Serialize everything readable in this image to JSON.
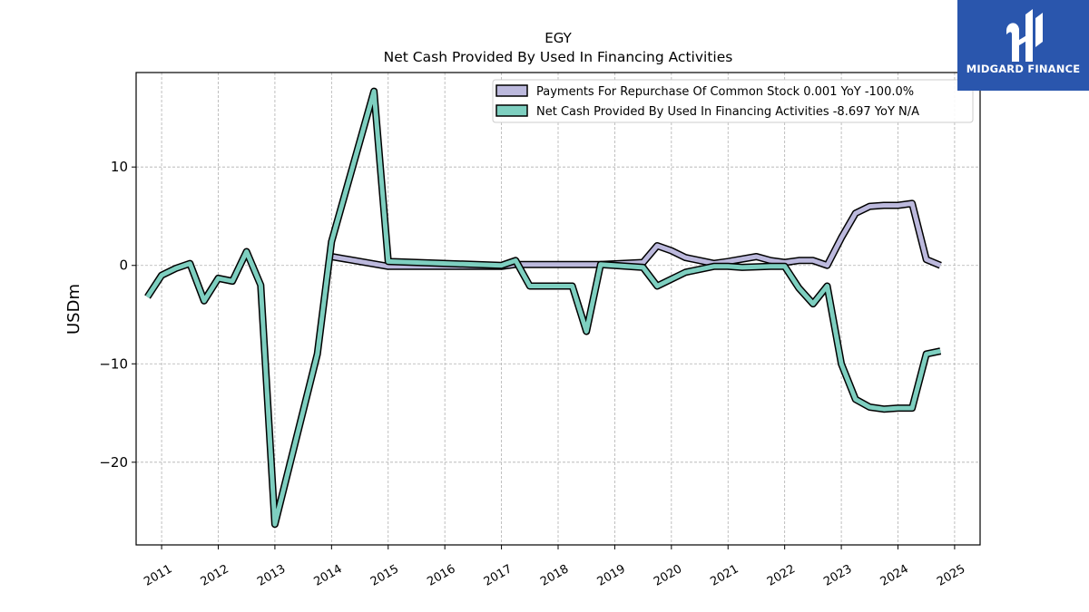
{
  "chart_data": {
    "type": "line",
    "title": "EGY",
    "subtitle": "Net Cash Provided By Used In Financing Activities",
    "ylabel": "USDm",
    "xlabel": "",
    "xlim": [
      2010.55,
      2025.45
    ],
    "ylim": [
      -28.4,
      19.6
    ],
    "yticks": [
      10,
      0,
      -10,
      -20
    ],
    "ytick_labels": [
      "10",
      "0",
      "−10",
      "−20"
    ],
    "xticks": [
      "2011",
      "2012",
      "2013",
      "2014",
      "2015",
      "2016",
      "2017",
      "2018",
      "2019",
      "2020",
      "2021",
      "2022",
      "2023",
      "2024",
      "2025"
    ],
    "grid": true,
    "legend_position": "top-right",
    "series": [
      {
        "name": "Payments For Repurchase Of Common Stock",
        "legend_label": "Payments For Repurchase Of Common Stock  0.001 YoY -100.0%",
        "color": "#bcb9dd",
        "x": [
          2014.0,
          2015.0,
          2017.0,
          2017.25,
          2018.0,
          2018.75,
          2019.5,
          2019.75,
          2020.0,
          2020.25,
          2020.75,
          2021.0,
          2021.5,
          2021.75,
          2022.0,
          2022.25,
          2022.5,
          2022.75,
          2023.0,
          2023.25,
          2023.5,
          2023.75,
          2024.0,
          2024.25,
          2024.5,
          2024.75
        ],
        "values": [
          0.9,
          -0.1,
          -0.1,
          0.1,
          0.1,
          0.1,
          0.3,
          2.0,
          1.5,
          0.8,
          0.2,
          0.4,
          0.9,
          0.5,
          0.3,
          0.5,
          0.5,
          0.0,
          2.8,
          5.3,
          6.0,
          6.1,
          6.1,
          6.3,
          0.6,
          0.0
        ]
      },
      {
        "name": "Net Cash Provided By Used In Financing Activities",
        "legend_label": "Net Cash Provided By Used In Financing Activities  -8.697 YoY N/A",
        "color": "#7ecfc0",
        "x": [
          2010.75,
          2011.0,
          2011.25,
          2011.5,
          2011.75,
          2012.0,
          2012.25,
          2012.5,
          2012.75,
          2013.0,
          2013.75,
          2014.0,
          2014.75,
          2015.0,
          2017.0,
          2017.25,
          2017.5,
          2018.0,
          2018.25,
          2018.5,
          2018.75,
          2019.5,
          2019.75,
          2020.25,
          2020.75,
          2021.0,
          2021.25,
          2021.75,
          2022.0,
          2022.25,
          2022.5,
          2022.75,
          2023.0,
          2023.25,
          2023.5,
          2023.75,
          2024.0,
          2024.25,
          2024.5,
          2024.75
        ],
        "values": [
          -3.2,
          -1.0,
          -0.3,
          0.2,
          -3.6,
          -1.3,
          -1.6,
          1.4,
          -2.0,
          -26.3,
          -9.0,
          2.4,
          17.7,
          0.4,
          0.0,
          0.5,
          -2.1,
          -2.1,
          -2.1,
          -6.7,
          0.1,
          -0.2,
          -2.1,
          -0.7,
          -0.1,
          -0.1,
          -0.2,
          -0.1,
          -0.1,
          -2.3,
          -3.9,
          -2.1,
          -10.0,
          -13.6,
          -14.4,
          -14.6,
          -14.5,
          -14.5,
          -9.0,
          -8.7
        ]
      }
    ]
  },
  "brand": {
    "name": "MIDGARD FINANCE",
    "bg_color": "#2a56ad"
  }
}
